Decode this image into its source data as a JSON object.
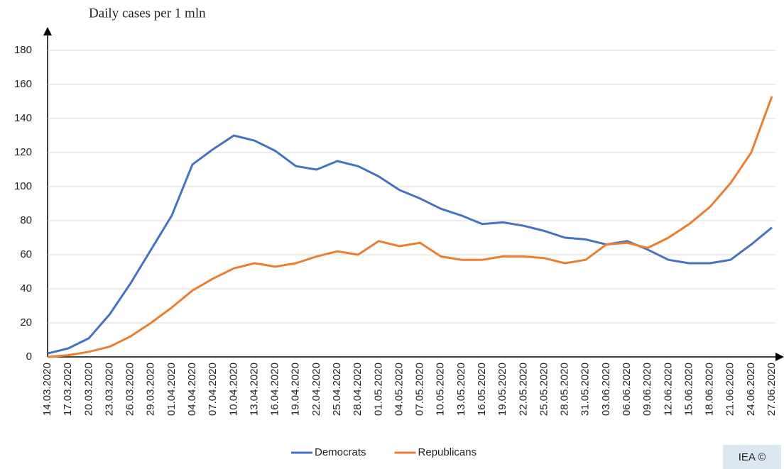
{
  "chart_data": {
    "type": "line",
    "title": "Daily cases per 1 mln",
    "categories": [
      "14.03.2020",
      "17.03.2020",
      "20.03.2020",
      "23.03.2020",
      "26.03.2020",
      "29.03.2020",
      "01.04.2020",
      "04.04.2020",
      "07.04.2020",
      "10.04.2020",
      "13.04.2020",
      "16.04.2020",
      "19.04.2020",
      "22.04.2020",
      "25.04.2020",
      "28.04.2020",
      "01.05.2020",
      "04.05.2020",
      "07.05.2020",
      "10.05.2020",
      "13.05.2020",
      "16.05.2020",
      "19.05.2020",
      "22.05.2020",
      "25.05.2020",
      "28.05.2020",
      "31.05.2020",
      "03.06.2020",
      "06.06.2020",
      "09.06.2020",
      "12.06.2020",
      "15.06.2020",
      "18.06.2020",
      "21.06.2020",
      "24.06.2020",
      "27.06.2020"
    ],
    "series": [
      {
        "name": "Democrats",
        "color": "#4472c4",
        "values": [
          2,
          5,
          11,
          25,
          43,
          63,
          83,
          113,
          122,
          130,
          127,
          121,
          112,
          110,
          115,
          112,
          106,
          98,
          93,
          87,
          83,
          78,
          79,
          77,
          74,
          70,
          69,
          66,
          68,
          63,
          57,
          55,
          55,
          57,
          66,
          76
        ]
      },
      {
        "name": "Republicans",
        "color": "#ed7d31",
        "values": [
          0,
          1,
          3,
          6,
          12,
          20,
          29,
          39,
          46,
          52,
          55,
          53,
          55,
          59,
          62,
          60,
          68,
          65,
          67,
          59,
          57,
          57,
          59,
          59,
          58,
          55,
          57,
          66,
          67,
          64,
          70,
          78,
          88,
          102,
          120,
          153
        ]
      }
    ],
    "ylim": [
      0,
      180
    ],
    "yticks": [
      0,
      20,
      40,
      60,
      80,
      100,
      120,
      140,
      160,
      180
    ],
    "grid": true,
    "legend": "bottom",
    "source": "IEA ©"
  }
}
